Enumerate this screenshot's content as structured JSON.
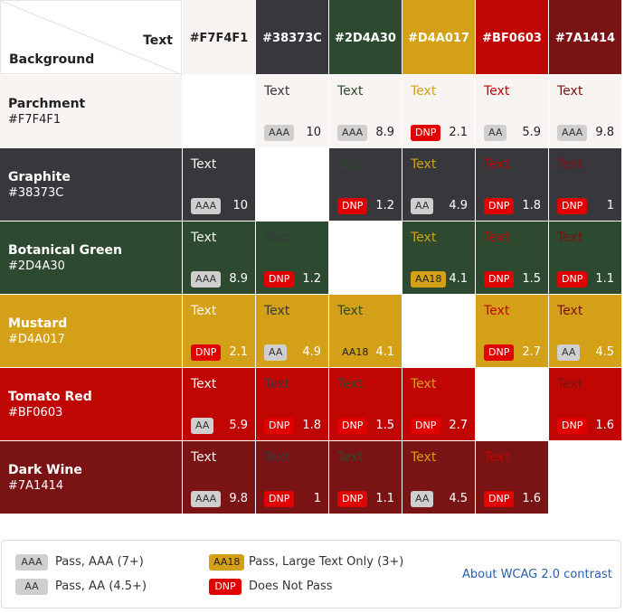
{
  "corner": {
    "text_label": "Text",
    "background_label": "Background"
  },
  "columns": [
    {
      "hex": "#F7F4F1"
    },
    {
      "hex": "#38373C"
    },
    {
      "hex": "#2D4A30"
    },
    {
      "hex": "#D4A017"
    },
    {
      "hex": "#BF0603"
    },
    {
      "hex": "#7A1414"
    }
  ],
  "rows": [
    {
      "name": "Parchment",
      "hex": "#F7F4F1",
      "cells": [
        null,
        {
          "text": "Text",
          "badge": "AAA",
          "ratio": 10
        },
        {
          "text": "Text",
          "badge": "AAA",
          "ratio": 8.9
        },
        {
          "text": "Text",
          "badge": "DNP",
          "ratio": 2.1
        },
        {
          "text": "Text",
          "badge": "AA",
          "ratio": 5.9
        },
        {
          "text": "Text",
          "badge": "AAA",
          "ratio": 9.8
        }
      ]
    },
    {
      "name": "Graphite",
      "hex": "#38373C",
      "cells": [
        {
          "text": "Text",
          "badge": "AAA",
          "ratio": 10
        },
        null,
        {
          "text": "Text",
          "badge": "DNP",
          "ratio": 1.2
        },
        {
          "text": "Text",
          "badge": "AA",
          "ratio": 4.9
        },
        {
          "text": "Text",
          "badge": "DNP",
          "ratio": 1.8
        },
        {
          "text": "Text",
          "badge": "DNP",
          "ratio": 1
        }
      ]
    },
    {
      "name": "Botanical Green",
      "hex": "#2D4A30",
      "cells": [
        {
          "text": "Text",
          "badge": "AAA",
          "ratio": 8.9
        },
        {
          "text": "Text",
          "badge": "DNP",
          "ratio": 1.2
        },
        null,
        {
          "text": "Text",
          "badge": "AA18",
          "ratio": 4.1
        },
        {
          "text": "Text",
          "badge": "DNP",
          "ratio": 1.5
        },
        {
          "text": "Text",
          "badge": "DNP",
          "ratio": 1.1
        }
      ]
    },
    {
      "name": "Mustard",
      "hex": "#D4A017",
      "cells": [
        {
          "text": "Text",
          "badge": "DNP",
          "ratio": 2.1
        },
        {
          "text": "Text",
          "badge": "AA",
          "ratio": 4.9
        },
        {
          "text": "Text",
          "badge": "AA18",
          "ratio": 4.1
        },
        null,
        {
          "text": "Text",
          "badge": "DNP",
          "ratio": 2.7
        },
        {
          "text": "Text",
          "badge": "AA",
          "ratio": 4.5
        }
      ]
    },
    {
      "name": "Tomato Red",
      "hex": "#BF0603",
      "cells": [
        {
          "text": "Text",
          "badge": "AA",
          "ratio": 5.9
        },
        {
          "text": "Text",
          "badge": "DNP",
          "ratio": 1.8
        },
        {
          "text": "Text",
          "badge": "DNP",
          "ratio": 1.5
        },
        {
          "text": "Text",
          "badge": "DNP",
          "ratio": 2.7
        },
        null,
        {
          "text": "Text",
          "badge": "DNP",
          "ratio": 1.6
        }
      ]
    },
    {
      "name": "Dark Wine",
      "hex": "#7A1414",
      "cells": [
        {
          "text": "Text",
          "badge": "AAA",
          "ratio": 9.8
        },
        {
          "text": "Text",
          "badge": "DNP",
          "ratio": 1
        },
        {
          "text": "Text",
          "badge": "DNP",
          "ratio": 1.1
        },
        {
          "text": "Text",
          "badge": "AA",
          "ratio": 4.5
        },
        {
          "text": "Text",
          "badge": "DNP",
          "ratio": 1.6
        },
        null
      ]
    }
  ],
  "legend": [
    {
      "badge": "AAA",
      "label": "Pass, AAA (7+)",
      "color": "#cfcfcf",
      "text_color": "#333333"
    },
    {
      "badge": "AA",
      "label": "Pass, AA (4.5+)",
      "color": "#cfcfcf",
      "text_color": "#333333"
    },
    {
      "badge": "AA18",
      "label": "Pass, Large Text Only (3+)",
      "color": "#d4a017",
      "text_color": "#222222"
    },
    {
      "badge": "DNP",
      "label": "Does Not Pass",
      "color": "#e00000",
      "text_color": "#ffffff"
    }
  ],
  "link": "About WCAG 2.0 contrast"
}
